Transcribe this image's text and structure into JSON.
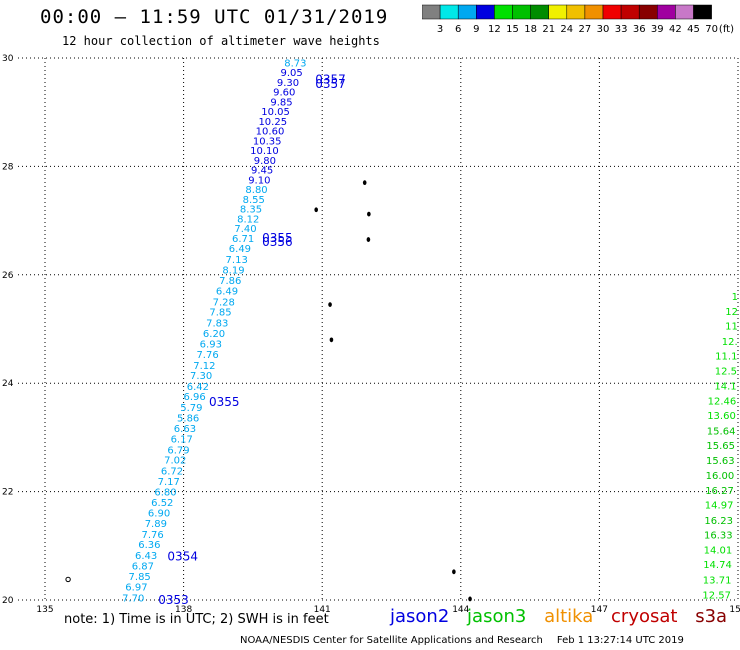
{
  "header": {
    "title": "00:00 — 11:59 UTC 01/31/2019",
    "subtitle": "12 hour collection of altimeter wave heights"
  },
  "color_scale": {
    "labels": [
      "3",
      "6",
      "9",
      "12",
      "15",
      "18",
      "21",
      "24",
      "27",
      "30",
      "33",
      "36",
      "39",
      "42",
      "45",
      "70"
    ],
    "unit": "(ft)",
    "colors": [
      "#808080",
      "#00e8e8",
      "#00a8f0",
      "#0000e0",
      "#00e000",
      "#00c000",
      "#008c00",
      "#f0f000",
      "#f0c000",
      "#f09000",
      "#f00000",
      "#c00000",
      "#880000",
      "#a000a0",
      "#c878c8",
      "#000000"
    ]
  },
  "satellite_colors": {
    "jason2": "#0000e0",
    "jason2_light": "#00a8f0",
    "jason3": "#00c000",
    "jason3_light": "#00e000",
    "altika": "#f09000",
    "cryosat": "#c00000",
    "s3a": "#880000"
  },
  "chart_data": {
    "type": "scatter",
    "xlim": [
      135,
      150
    ],
    "ylim": [
      20,
      30
    ],
    "x_ticks": [
      "135",
      "138",
      "141",
      "144",
      "147",
      "150"
    ],
    "y_ticks": [
      "20",
      "22",
      "24",
      "26",
      "28",
      "30"
    ],
    "grid": true,
    "series": [
      {
        "name": "jason2",
        "points": [
          {
            "lon": 137.15,
            "lat": 20.05,
            "v": "7.70"
          },
          {
            "lon": 137.22,
            "lat": 20.25,
            "v": "6.97"
          },
          {
            "lon": 137.29,
            "lat": 20.44,
            "v": "7.85"
          },
          {
            "lon": 137.36,
            "lat": 20.64,
            "v": "6.87"
          },
          {
            "lon": 137.43,
            "lat": 20.83,
            "v": "6.43"
          },
          {
            "lon": 137.5,
            "lat": 21.03,
            "v": "6.36"
          },
          {
            "lon": 137.57,
            "lat": 21.22,
            "v": "7.76"
          },
          {
            "lon": 137.64,
            "lat": 21.42,
            "v": "7.89"
          },
          {
            "lon": 137.71,
            "lat": 21.61,
            "v": "6.90"
          },
          {
            "lon": 137.78,
            "lat": 21.81,
            "v": "6.52"
          },
          {
            "lon": 137.85,
            "lat": 22.0,
            "v": "6.80"
          },
          {
            "lon": 137.92,
            "lat": 22.2,
            "v": "7.17"
          },
          {
            "lon": 137.99,
            "lat": 22.39,
            "v": "6.72"
          },
          {
            "lon": 138.06,
            "lat": 22.59,
            "v": "7.02"
          },
          {
            "lon": 138.13,
            "lat": 22.78,
            "v": "6.79"
          },
          {
            "lon": 138.2,
            "lat": 22.98,
            "v": "6.17"
          },
          {
            "lon": 138.27,
            "lat": 23.17,
            "v": "6.63"
          },
          {
            "lon": 138.34,
            "lat": 23.37,
            "v": "5.86"
          },
          {
            "lon": 138.41,
            "lat": 23.56,
            "v": "5.79"
          },
          {
            "lon": 138.48,
            "lat": 23.76,
            "v": "6.96"
          },
          {
            "lon": 138.55,
            "lat": 23.95,
            "v": "6.42"
          },
          {
            "lon": 138.62,
            "lat": 24.15,
            "v": "7.30"
          },
          {
            "lon": 138.69,
            "lat": 24.34,
            "v": "7.12"
          },
          {
            "lon": 138.76,
            "lat": 24.54,
            "v": "7.76"
          },
          {
            "lon": 138.83,
            "lat": 24.73,
            "v": "6.93"
          },
          {
            "lon": 138.9,
            "lat": 24.93,
            "v": "6.20"
          },
          {
            "lon": 138.97,
            "lat": 25.12,
            "v": "7.83"
          },
          {
            "lon": 139.04,
            "lat": 25.32,
            "v": "7.85"
          },
          {
            "lon": 139.11,
            "lat": 25.51,
            "v": "7.28"
          },
          {
            "lon": 139.18,
            "lat": 25.71,
            "v": "6.49"
          },
          {
            "lon": 139.25,
            "lat": 25.9,
            "v": "7.86"
          },
          {
            "lon": 139.32,
            "lat": 26.1,
            "v": "8.19"
          },
          {
            "lon": 139.39,
            "lat": 26.29,
            "v": "7.13"
          },
          {
            "lon": 139.46,
            "lat": 26.49,
            "v": "6.49"
          },
          {
            "lon": 139.53,
            "lat": 26.68,
            "v": "6.71"
          },
          {
            "lon": 139.58,
            "lat": 26.86,
            "v": "7.40"
          },
          {
            "lon": 139.64,
            "lat": 27.04,
            "v": "8.12"
          },
          {
            "lon": 139.7,
            "lat": 27.22,
            "v": "8.35"
          },
          {
            "lon": 139.76,
            "lat": 27.4,
            "v": "8.55"
          },
          {
            "lon": 139.82,
            "lat": 27.58,
            "v": "8.80"
          },
          {
            "lon": 139.88,
            "lat": 27.76,
            "v": "9.10"
          },
          {
            "lon": 139.94,
            "lat": 27.94,
            "v": "9.45"
          },
          {
            "lon": 140.0,
            "lat": 28.12,
            "v": "9.80"
          },
          {
            "lon": 140.06,
            "lat": 28.3,
            "v": "10.10"
          },
          {
            "lon": 140.12,
            "lat": 28.48,
            "v": "10.35"
          },
          {
            "lon": 140.18,
            "lat": 28.66,
            "v": "10.60"
          },
          {
            "lon": 140.24,
            "lat": 28.84,
            "v": "10.25"
          },
          {
            "lon": 140.3,
            "lat": 29.02,
            "v": "10.05"
          },
          {
            "lon": 140.36,
            "lat": 29.2,
            "v": "9.85"
          },
          {
            "lon": 140.42,
            "lat": 29.38,
            "v": "9.60"
          },
          {
            "lon": 140.5,
            "lat": 29.56,
            "v": "9.30"
          },
          {
            "lon": 140.58,
            "lat": 29.74,
            "v": "9.05"
          },
          {
            "lon": 140.66,
            "lat": 29.92,
            "v": "8.73"
          }
        ]
      },
      {
        "name": "jason3",
        "points": [
          {
            "lon": 149.65,
            "lat": 20.1,
            "v": "12.57"
          },
          {
            "lon": 149.67,
            "lat": 20.38,
            "v": "13.71"
          },
          {
            "lon": 149.69,
            "lat": 20.66,
            "v": "14.74"
          },
          {
            "lon": 149.71,
            "lat": 20.93,
            "v": "14.01"
          },
          {
            "lon": 149.73,
            "lat": 21.21,
            "v": "16.33"
          },
          {
            "lon": 149.75,
            "lat": 21.48,
            "v": "16.23"
          },
          {
            "lon": 149.77,
            "lat": 21.76,
            "v": "14.97"
          },
          {
            "lon": 149.79,
            "lat": 22.03,
            "v": "16.27"
          },
          {
            "lon": 149.81,
            "lat": 22.31,
            "v": "16.00"
          },
          {
            "lon": 149.83,
            "lat": 22.58,
            "v": "15.63"
          },
          {
            "lon": 149.85,
            "lat": 22.86,
            "v": "15.65"
          },
          {
            "lon": 149.87,
            "lat": 23.13,
            "v": "15.64"
          },
          {
            "lon": 149.89,
            "lat": 23.41,
            "v": "13.60"
          },
          {
            "lon": 149.91,
            "lat": 23.68,
            "v": "12.46"
          },
          {
            "lon": 149.93,
            "lat": 23.96,
            "v": "14.1"
          },
          {
            "lon": 149.95,
            "lat": 24.23,
            "v": "12.5"
          },
          {
            "lon": 149.97,
            "lat": 24.51,
            "v": "11.1"
          },
          {
            "lon": 149.98,
            "lat": 24.78,
            "v": "12."
          },
          {
            "lon": 149.99,
            "lat": 25.06,
            "v": "11"
          },
          {
            "lon": 149.995,
            "lat": 25.33,
            "v": "12"
          },
          {
            "lon": 149.998,
            "lat": 25.61,
            "v": "1"
          }
        ]
      }
    ],
    "time_labels": [
      {
        "lon": 137.45,
        "lat": 20.02,
        "v": "0353"
      },
      {
        "lon": 137.65,
        "lat": 20.82,
        "v": "0354"
      },
      {
        "lon": 138.55,
        "lat": 23.67,
        "v": "0355"
      },
      {
        "lon": 139.7,
        "lat": 26.62,
        "v": "0356"
      },
      {
        "lon": 139.7,
        "lat": 26.7,
        "v": "0355"
      },
      {
        "lon": 140.85,
        "lat": 29.54,
        "v": "0357"
      },
      {
        "lon": 140.85,
        "lat": 29.62,
        "v": "0357"
      }
    ],
    "islands": [
      {
        "lon": 141.92,
        "lat": 27.7
      },
      {
        "lon": 142.01,
        "lat": 27.12
      },
      {
        "lon": 142.0,
        "lat": 26.65
      },
      {
        "lon": 140.87,
        "lat": 27.2
      },
      {
        "lon": 141.17,
        "lat": 25.45
      },
      {
        "lon": 141.2,
        "lat": 24.8
      },
      {
        "lon": 143.85,
        "lat": 20.52
      },
      {
        "lon": 144.2,
        "lat": 20.02
      },
      {
        "lon": 135.5,
        "lat": 20.38
      }
    ]
  },
  "footer": {
    "note": "note:  1)  Time is in UTC;  2)  SWH is in feet",
    "legend": [
      "jason2",
      "jason3",
      "altika",
      "cryosat",
      "s3a"
    ],
    "credit": "NOAA/NESDIS Center for Satellite Applications and Research",
    "timestamp": "Feb  1 13:27:14 UTC 2019"
  }
}
